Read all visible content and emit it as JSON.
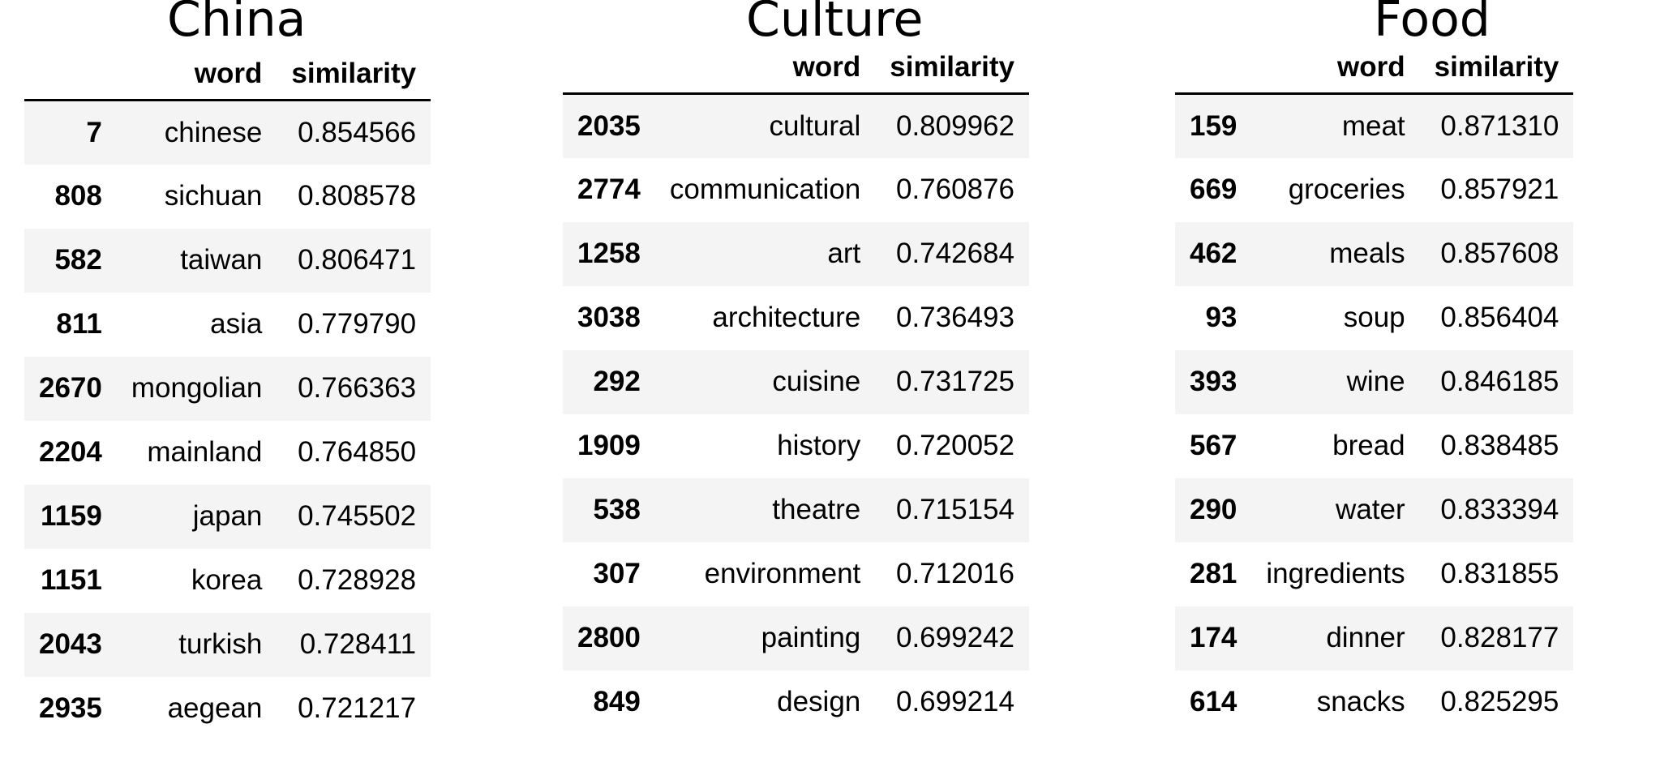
{
  "header": {
    "word": "word",
    "similarity": "similarity"
  },
  "tables": [
    {
      "title": "China",
      "rows": [
        {
          "index": "7",
          "word": "chinese",
          "similarity": "0.854566"
        },
        {
          "index": "808",
          "word": "sichuan",
          "similarity": "0.808578"
        },
        {
          "index": "582",
          "word": "taiwan",
          "similarity": "0.806471"
        },
        {
          "index": "811",
          "word": "asia",
          "similarity": "0.779790"
        },
        {
          "index": "2670",
          "word": "mongolian",
          "similarity": "0.766363"
        },
        {
          "index": "2204",
          "word": "mainland",
          "similarity": "0.764850"
        },
        {
          "index": "1159",
          "word": "japan",
          "similarity": "0.745502"
        },
        {
          "index": "1151",
          "word": "korea",
          "similarity": "0.728928"
        },
        {
          "index": "2043",
          "word": "turkish",
          "similarity": "0.728411"
        },
        {
          "index": "2935",
          "word": "aegean",
          "similarity": "0.721217"
        }
      ]
    },
    {
      "title": "Culture",
      "rows": [
        {
          "index": "2035",
          "word": "cultural",
          "similarity": "0.809962"
        },
        {
          "index": "2774",
          "word": "communication",
          "similarity": "0.760876"
        },
        {
          "index": "1258",
          "word": "art",
          "similarity": "0.742684"
        },
        {
          "index": "3038",
          "word": "architecture",
          "similarity": "0.736493"
        },
        {
          "index": "292",
          "word": "cuisine",
          "similarity": "0.731725"
        },
        {
          "index": "1909",
          "word": "history",
          "similarity": "0.720052"
        },
        {
          "index": "538",
          "word": "theatre",
          "similarity": "0.715154"
        },
        {
          "index": "307",
          "word": "environment",
          "similarity": "0.712016"
        },
        {
          "index": "2800",
          "word": "painting",
          "similarity": "0.699242"
        },
        {
          "index": "849",
          "word": "design",
          "similarity": "0.699214"
        }
      ]
    },
    {
      "title": "Food",
      "rows": [
        {
          "index": "159",
          "word": "meat",
          "similarity": "0.871310"
        },
        {
          "index": "669",
          "word": "groceries",
          "similarity": "0.857921"
        },
        {
          "index": "462",
          "word": "meals",
          "similarity": "0.857608"
        },
        {
          "index": "93",
          "word": "soup",
          "similarity": "0.856404"
        },
        {
          "index": "393",
          "word": "wine",
          "similarity": "0.846185"
        },
        {
          "index": "567",
          "word": "bread",
          "similarity": "0.838485"
        },
        {
          "index": "290",
          "word": "water",
          "similarity": "0.833394"
        },
        {
          "index": "281",
          "word": "ingredients",
          "similarity": "0.831855"
        },
        {
          "index": "174",
          "word": "dinner",
          "similarity": "0.828177"
        },
        {
          "index": "614",
          "word": "snacks",
          "similarity": "0.825295"
        }
      ]
    }
  ]
}
